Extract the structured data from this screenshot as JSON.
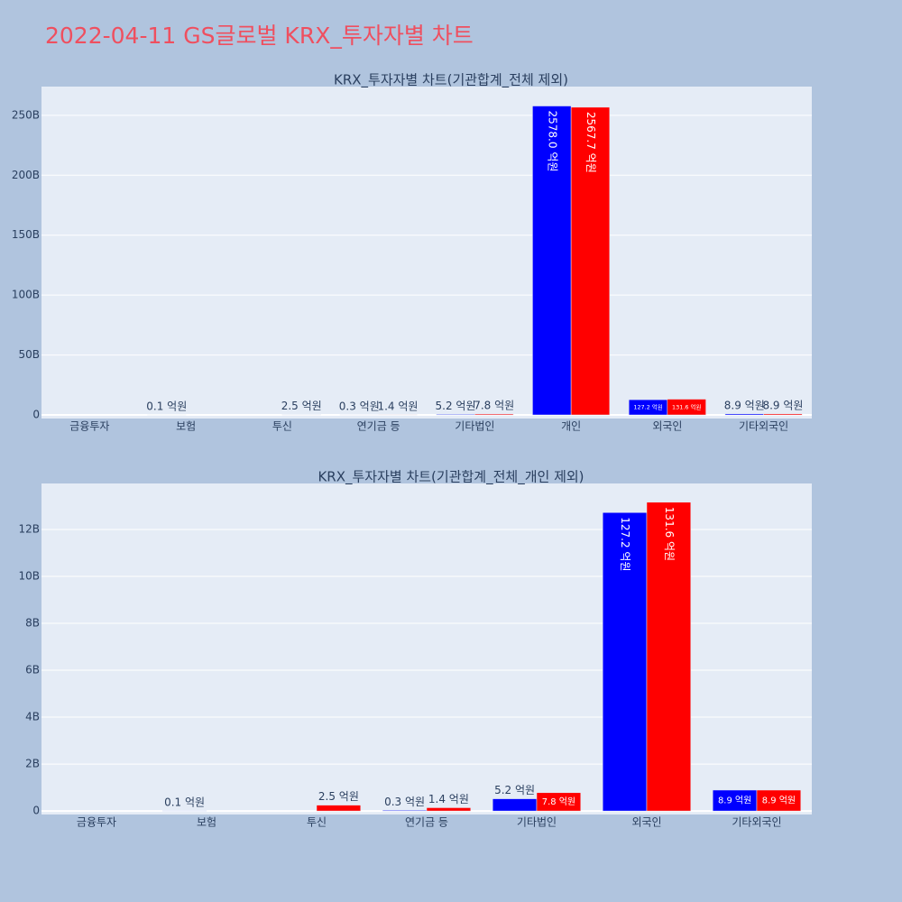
{
  "title": "2022-04-11 GS글로벌 KRX_투자자별 차트",
  "chart_data": [
    {
      "type": "bar",
      "title": "KRX_투자자별 차트(기관합계_전체 제외)",
      "categories": [
        "금융투자",
        "보험",
        "투신",
        "연기금 등",
        "기타법인",
        "개인",
        "외국인",
        "기타외국인"
      ],
      "series": [
        {
          "color": "#0000ff",
          "values": [
            0,
            10000000,
            0,
            30000000,
            520000000,
            257800000000,
            12720000000,
            890000000
          ],
          "value_labels": [
            null,
            "0.1 억원",
            null,
            "0.3 억원",
            "5.2 억원",
            "2578.0 억원",
            "127.2 억원",
            "8.9 억원"
          ]
        },
        {
          "color": "#ff0000",
          "values": [
            0,
            0,
            250000000,
            140000000,
            780000000,
            256770000000,
            13160000000,
            890000000
          ],
          "value_labels": [
            null,
            null,
            "2.5 억원",
            "1.4 억원",
            "7.8 억원",
            "2567.7 억원",
            "131.6 억원",
            "8.9 억원"
          ]
        }
      ],
      "ylim": [
        -3000000000,
        274000000000
      ],
      "yticks": [
        0,
        {
          "value": 50000000000,
          "label": "50B"
        },
        {
          "value": 100000000000,
          "label": "100B"
        },
        {
          "value": 150000000000,
          "label": "150B"
        },
        {
          "value": 200000000000,
          "label": "200B"
        },
        {
          "value": 250000000000,
          "label": "250B"
        }
      ],
      "grid": true
    },
    {
      "type": "bar",
      "title": "KRX_투자자별 차트(기관합계_전체_개인 제외)",
      "categories": [
        "금융투자",
        "보험",
        "투신",
        "연기금 등",
        "기타법인",
        "외국인",
        "기타외국인"
      ],
      "series": [
        {
          "color": "#0000ff",
          "values": [
            0,
            10000000,
            0,
            30000000,
            520000000,
            12720000000,
            890000000
          ],
          "value_labels": [
            null,
            "0.1 억원",
            null,
            "0.3 억원",
            "5.2 억원",
            "127.2 억원",
            "8.9 억원"
          ]
        },
        {
          "color": "#ff0000",
          "values": [
            0,
            0,
            250000000,
            140000000,
            780000000,
            13160000000,
            890000000
          ],
          "value_labels": [
            null,
            null,
            "2.5 억원",
            "1.4 억원",
            "7.8 억원",
            "131.6 억원",
            "8.9 억원"
          ]
        }
      ],
      "ylim": [
        -150000000,
        13960000000
      ],
      "yticks": [
        0,
        {
          "value": 2000000000,
          "label": "2B"
        },
        {
          "value": 4000000000,
          "label": "4B"
        },
        {
          "value": 6000000000,
          "label": "6B"
        },
        {
          "value": 8000000000,
          "label": "8B"
        },
        {
          "value": 10000000000,
          "label": "10B"
        },
        {
          "value": 12000000000,
          "label": "12B"
        }
      ],
      "grid": true
    }
  ]
}
